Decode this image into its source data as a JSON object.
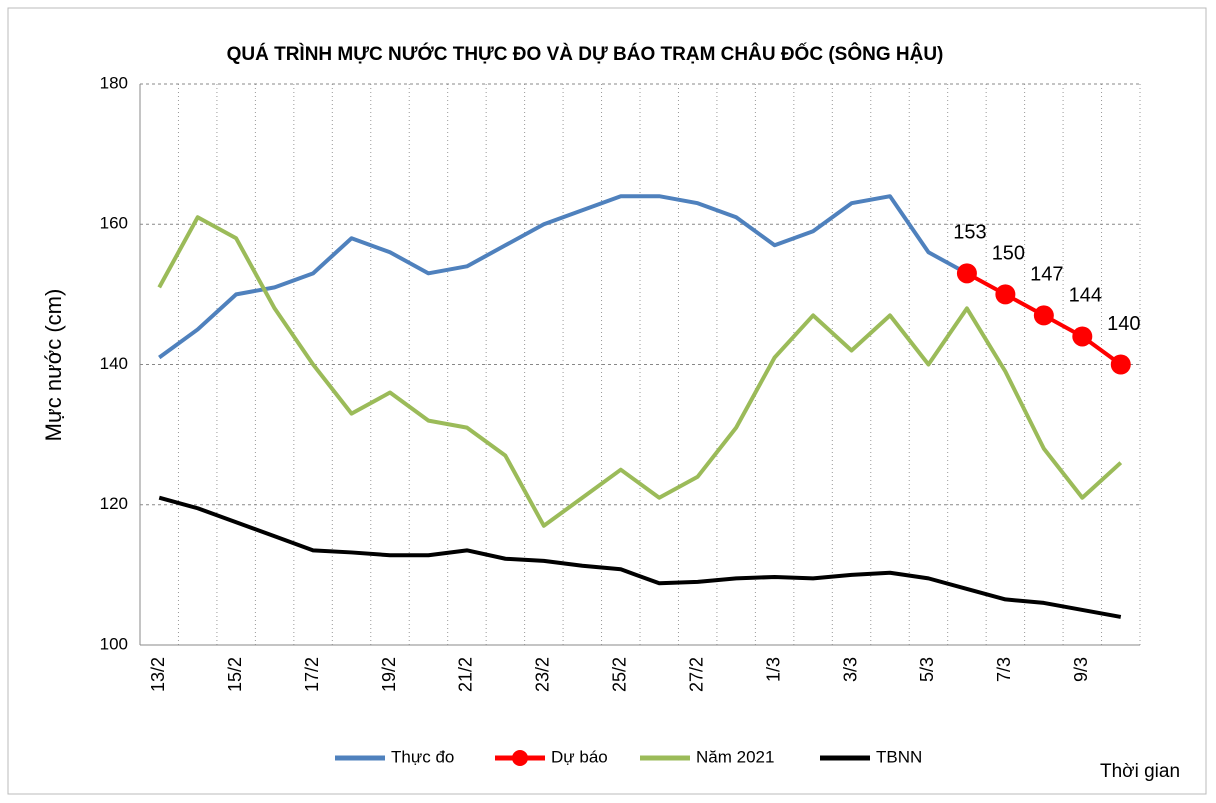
{
  "chart_data": {
    "type": "line",
    "title": "QUÁ TRÌNH MỰC NƯỚC THỰC ĐO VÀ DỰ BÁO TRẠM CHÂU ĐỐC (SÔNG HẬU)",
    "y_label": "Mực nước (cm)",
    "x_label": "Thời gian",
    "categories": [
      "13/2",
      null,
      "15/2",
      null,
      "17/2",
      null,
      "19/2",
      null,
      "21/2",
      null,
      "23/2",
      null,
      "25/2",
      null,
      "27/2",
      null,
      "1/3",
      null,
      "3/3",
      null,
      "5/3",
      null,
      "7/3",
      null,
      "9/3",
      null
    ],
    "ylim": [
      100,
      180
    ],
    "yticks": [
      100,
      120,
      140,
      160,
      180
    ],
    "grid": true,
    "legend": "bottom",
    "series": [
      {
        "name": "Thực đo",
        "color": "#4f81bd",
        "values": [
          141,
          145,
          150,
          151,
          153,
          158,
          156,
          153,
          154,
          157,
          160,
          162,
          164,
          164,
          163,
          161,
          157,
          159,
          163,
          164,
          156,
          153,
          null,
          null,
          null,
          null
        ]
      },
      {
        "name": "Dự báo",
        "color": "#ff0000",
        "markers": true,
        "data_labels": true,
        "values": [
          null,
          null,
          null,
          null,
          null,
          null,
          null,
          null,
          null,
          null,
          null,
          null,
          null,
          null,
          null,
          null,
          null,
          null,
          null,
          null,
          null,
          153,
          150,
          147,
          144,
          140
        ]
      },
      {
        "name": "Năm 2021",
        "color": "#9bbb59",
        "values": [
          151,
          161,
          158,
          148,
          140,
          133,
          136,
          132,
          131,
          127,
          117,
          121,
          125,
          121,
          124,
          131,
          141,
          147,
          142,
          147,
          140,
          148,
          139,
          128,
          121,
          126
        ]
      },
      {
        "name": "TBNN",
        "color": "#000000",
        "values": [
          121,
          119.5,
          117.5,
          115.5,
          113.5,
          113.2,
          112.8,
          112.8,
          113.5,
          112.3,
          112,
          111.3,
          110.8,
          108.8,
          109,
          109.5,
          109.7,
          109.5,
          110,
          110.3,
          109.5,
          108,
          106.5,
          106,
          105,
          104
        ]
      }
    ]
  }
}
